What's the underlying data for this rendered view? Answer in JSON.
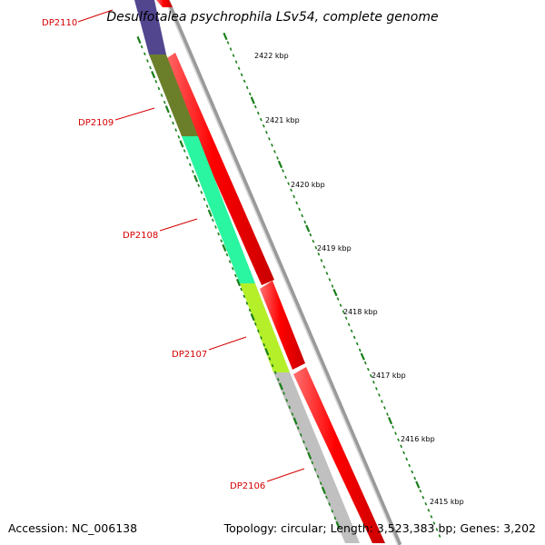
{
  "title": "Desulfotalea psychrophila LSv54, complete genome",
  "footer": {
    "accession": "Accession: NC_006138",
    "summary": "Topology: circular; Length: 3,523,383 bp; Genes: 3,202"
  },
  "colors": {
    "forward_gene": "#ff0000",
    "backbone": "#8a8a8a",
    "ticks": "#1a7f1a",
    "labels": "#d40000"
  },
  "genes": [
    {
      "id": "DP2110",
      "color": "#52468f"
    },
    {
      "id": "DP2109",
      "color": "#6b7f2a"
    },
    {
      "id": "DP2108",
      "color": "#2af5a0"
    },
    {
      "id": "DP2107",
      "color": "#b5ef2a"
    },
    {
      "id": "DP2106",
      "color": "#c0c0c0"
    }
  ],
  "kbp_ticks": [
    "2422 kbp",
    "2421 kbp",
    "2420 kbp",
    "2419 kbp",
    "2418 kbp",
    "2417 kbp",
    "2416 kbp",
    "2415 kbp"
  ]
}
